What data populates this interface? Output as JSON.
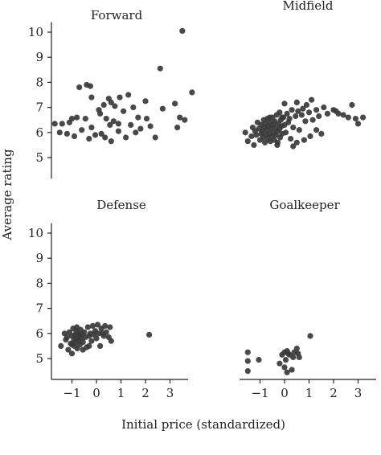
{
  "chart_data": {
    "type": "scatter",
    "xlabel": "Initial price (standardized)",
    "ylabel": "Average rating",
    "xlim": [
      -1.6,
      3.9
    ],
    "ylim": [
      3.7,
      10.4
    ],
    "xticks": [
      "−1",
      "0",
      "1",
      "2",
      "3"
    ],
    "xtick_values": [
      -1,
      0,
      1,
      2,
      3
    ],
    "yticks": [
      "5",
      "6",
      "7",
      "8",
      "9",
      "10"
    ],
    "ytick_values": [
      5,
      6,
      7,
      8,
      9,
      10
    ],
    "point_color": "#3a3a3a",
    "panels": [
      {
        "title": "Forward",
        "points": [
          [
            3.5,
            10.05
          ],
          [
            3.9,
            7.6
          ],
          [
            2.6,
            8.55
          ],
          [
            -0.7,
            7.8
          ],
          [
            -0.4,
            7.9
          ],
          [
            -0.25,
            7.85
          ],
          [
            -0.2,
            7.4
          ],
          [
            0.1,
            6.9
          ],
          [
            0.3,
            7.1
          ],
          [
            0.5,
            7.35
          ],
          [
            0.6,
            7.2
          ],
          [
            0.75,
            7.05
          ],
          [
            0.95,
            7.4
          ],
          [
            1.1,
            6.85
          ],
          [
            1.3,
            7.5
          ],
          [
            1.5,
            7.0
          ],
          [
            2.0,
            7.25
          ],
          [
            2.7,
            6.95
          ],
          [
            3.2,
            7.15
          ],
          [
            3.4,
            6.6
          ],
          [
            3.6,
            6.5
          ],
          [
            -0.8,
            6.6
          ],
          [
            -1.0,
            6.55
          ],
          [
            -0.45,
            6.55
          ],
          [
            0.15,
            6.75
          ],
          [
            0.4,
            6.55
          ],
          [
            0.55,
            6.3
          ],
          [
            0.7,
            6.45
          ],
          [
            0.9,
            6.35
          ],
          [
            1.4,
            6.3
          ],
          [
            1.7,
            6.6
          ],
          [
            2.05,
            6.55
          ],
          [
            2.2,
            6.25
          ],
          [
            3.3,
            6.2
          ],
          [
            -1.4,
            6.35
          ],
          [
            -1.1,
            6.4
          ],
          [
            -0.6,
            6.1
          ],
          [
            -0.2,
            6.2
          ],
          [
            0.2,
            5.95
          ],
          [
            0.9,
            6.05
          ],
          [
            1.6,
            6.0
          ],
          [
            1.8,
            6.15
          ],
          [
            -1.7,
            6.35
          ],
          [
            -1.5,
            6.0
          ],
          [
            -1.2,
            5.95
          ],
          [
            -0.9,
            5.85
          ],
          [
            -0.3,
            5.75
          ],
          [
            -0.05,
            5.9
          ],
          [
            0.35,
            5.8
          ],
          [
            0.6,
            5.65
          ],
          [
            1.2,
            5.8
          ],
          [
            2.4,
            5.8
          ]
        ]
      },
      {
        "title": "Midfield",
        "points": [
          [
            -1.6,
            6.0
          ],
          [
            -1.5,
            5.65
          ],
          [
            -1.35,
            5.85
          ],
          [
            -1.3,
            6.2
          ],
          [
            -1.25,
            5.5
          ],
          [
            -1.2,
            6.05
          ],
          [
            -1.15,
            5.9
          ],
          [
            -1.1,
            6.4
          ],
          [
            -1.05,
            6.15
          ],
          [
            -1.0,
            5.7
          ],
          [
            -0.95,
            6.3
          ],
          [
            -0.95,
            5.95
          ],
          [
            -0.9,
            6.05
          ],
          [
            -0.88,
            5.8
          ],
          [
            -0.85,
            6.5
          ],
          [
            -0.82,
            6.2
          ],
          [
            -0.8,
            5.6
          ],
          [
            -0.78,
            6.35
          ],
          [
            -0.75,
            5.9
          ],
          [
            -0.72,
            6.1
          ],
          [
            -0.7,
            6.55
          ],
          [
            -0.68,
            5.75
          ],
          [
            -0.65,
            6.25
          ],
          [
            -0.62,
            5.95
          ],
          [
            -0.6,
            6.4
          ],
          [
            -0.58,
            5.65
          ],
          [
            -0.55,
            6.15
          ],
          [
            -0.52,
            5.85
          ],
          [
            -0.5,
            6.6
          ],
          [
            -0.48,
            6.3
          ],
          [
            -0.45,
            6.0
          ],
          [
            -0.42,
            5.7
          ],
          [
            -0.4,
            6.45
          ],
          [
            -0.38,
            6.2
          ],
          [
            -0.35,
            5.9
          ],
          [
            -0.32,
            6.7
          ],
          [
            -0.3,
            6.05
          ],
          [
            -0.28,
            5.6
          ],
          [
            -0.25,
            6.35
          ],
          [
            -0.2,
            6.15
          ],
          [
            -0.18,
            5.8
          ],
          [
            -0.15,
            6.5
          ],
          [
            -0.12,
            6.25
          ],
          [
            -0.1,
            5.95
          ],
          [
            -0.05,
            6.6
          ],
          [
            0.0,
            6.3
          ],
          [
            0.05,
            6.0
          ],
          [
            0.1,
            6.75
          ],
          [
            0.15,
            6.4
          ],
          [
            0.2,
            6.55
          ],
          [
            0.25,
            5.75
          ],
          [
            0.3,
            6.9
          ],
          [
            0.35,
            6.2
          ],
          [
            0.45,
            6.65
          ],
          [
            0.5,
            5.6
          ],
          [
            0.55,
            6.85
          ],
          [
            0.6,
            6.1
          ],
          [
            0.7,
            6.7
          ],
          [
            0.75,
            6.95
          ],
          [
            0.8,
            5.7
          ],
          [
            0.85,
            6.45
          ],
          [
            0.9,
            7.1
          ],
          [
            1.0,
            6.8
          ],
          [
            1.05,
            5.85
          ],
          [
            1.1,
            7.3
          ],
          [
            1.15,
            6.5
          ],
          [
            1.3,
            6.9
          ],
          [
            1.4,
            6.65
          ],
          [
            1.5,
            5.95
          ],
          [
            1.6,
            7.0
          ],
          [
            1.75,
            6.75
          ],
          [
            2.0,
            6.9
          ],
          [
            2.1,
            6.85
          ],
          [
            2.2,
            6.75
          ],
          [
            2.4,
            6.7
          ],
          [
            2.6,
            6.6
          ],
          [
            2.75,
            7.1
          ],
          [
            2.9,
            6.55
          ],
          [
            3.0,
            6.35
          ],
          [
            3.2,
            6.6
          ],
          [
            0.0,
            7.15
          ],
          [
            0.5,
            7.2
          ],
          [
            -0.1,
            6.6
          ],
          [
            -0.3,
            5.5
          ],
          [
            0.35,
            5.45
          ],
          [
            1.3,
            6.1
          ],
          [
            -0.6,
            6.6
          ],
          [
            -0.2,
            6.8
          ]
        ]
      },
      {
        "title": "Defense",
        "points": [
          [
            -1.45,
            5.5
          ],
          [
            -1.3,
            6.0
          ],
          [
            -1.25,
            5.75
          ],
          [
            -1.2,
            5.85
          ],
          [
            -1.15,
            5.35
          ],
          [
            -1.1,
            6.05
          ],
          [
            -1.05,
            5.6
          ],
          [
            -1.0,
            5.9
          ],
          [
            -1.0,
            5.2
          ],
          [
            -0.95,
            6.2
          ],
          [
            -0.92,
            5.75
          ],
          [
            -0.9,
            5.5
          ],
          [
            -0.88,
            5.95
          ],
          [
            -0.85,
            5.65
          ],
          [
            -0.82,
            6.1
          ],
          [
            -0.8,
            5.8
          ],
          [
            -0.78,
            5.4
          ],
          [
            -0.75,
            6.0
          ],
          [
            -0.72,
            5.7
          ],
          [
            -0.7,
            5.9
          ],
          [
            -0.68,
            5.55
          ],
          [
            -0.65,
            6.15
          ],
          [
            -0.62,
            5.8
          ],
          [
            -0.6,
            5.95
          ],
          [
            -0.55,
            5.65
          ],
          [
            -0.5,
            6.05
          ],
          [
            -0.45,
            5.85
          ],
          [
            -0.4,
            5.45
          ],
          [
            -0.35,
            6.25
          ],
          [
            -0.3,
            5.9
          ],
          [
            -0.25,
            6.0
          ],
          [
            -0.2,
            5.7
          ],
          [
            -0.15,
            6.3
          ],
          [
            -0.1,
            5.95
          ],
          [
            -0.05,
            6.1
          ],
          [
            0.0,
            5.8
          ],
          [
            0.05,
            6.35
          ],
          [
            0.1,
            6.0
          ],
          [
            0.15,
            5.5
          ],
          [
            0.2,
            6.2
          ],
          [
            0.3,
            5.9
          ],
          [
            0.35,
            6.3
          ],
          [
            0.4,
            6.05
          ],
          [
            0.5,
            5.85
          ],
          [
            0.55,
            6.25
          ],
          [
            0.6,
            5.7
          ],
          [
            -1.0,
            5.55
          ],
          [
            -0.8,
            6.25
          ],
          [
            -0.55,
            5.35
          ],
          [
            2.15,
            5.95
          ],
          [
            0.25,
            6.0
          ],
          [
            -0.3,
            5.5
          ]
        ]
      },
      {
        "title": "Goalkeeper",
        "points": [
          [
            -1.5,
            5.25
          ],
          [
            -1.5,
            4.9
          ],
          [
            -1.5,
            4.5
          ],
          [
            -1.05,
            4.95
          ],
          [
            -0.2,
            4.8
          ],
          [
            -0.1,
            5.15
          ],
          [
            0.0,
            5.25
          ],
          [
            0.0,
            4.65
          ],
          [
            0.05,
            4.95
          ],
          [
            0.1,
            5.3
          ],
          [
            0.1,
            4.45
          ],
          [
            0.15,
            5.2
          ],
          [
            0.2,
            5.15
          ],
          [
            0.3,
            4.55
          ],
          [
            0.35,
            5.05
          ],
          [
            0.4,
            5.25
          ],
          [
            0.5,
            5.4
          ],
          [
            0.55,
            5.2
          ],
          [
            0.6,
            5.05
          ],
          [
            1.05,
            5.9
          ]
        ]
      }
    ]
  }
}
